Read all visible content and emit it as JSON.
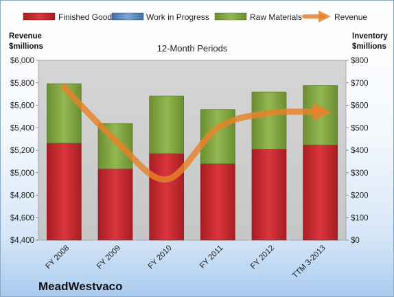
{
  "chart_data": {
    "type": "bar",
    "title": "12-Month Periods",
    "company": "MeadWestvaco",
    "left_axis_title": [
      "Revenue",
      "$millions"
    ],
    "right_axis_title": [
      "Inventory",
      "$millions"
    ],
    "categories": [
      "FY 2008",
      "FY 2009",
      "FY 2010",
      "FY 2011",
      "FY 2012",
      "TTM 3-2013"
    ],
    "left_axis": {
      "min": 4400,
      "max": 6000,
      "step": 200,
      "tick_labels": [
        "$4,400",
        "$4,600",
        "$4,800",
        "$5,000",
        "$5,200",
        "$5,400",
        "$5,600",
        "$5,800",
        "$6,000"
      ]
    },
    "right_axis": {
      "min": 0,
      "max": 800,
      "step": 100,
      "tick_labels": [
        "$0",
        "$100",
        "$200",
        "$300",
        "$400",
        "$500",
        "$600",
        "$700",
        "$800"
      ]
    },
    "series": [
      {
        "name": "Finished Goods",
        "axis": "right",
        "color": "#c0272d",
        "values": [
          432,
          317,
          385,
          340,
          405,
          423
        ]
      },
      {
        "name": "Work in Progress",
        "axis": "right",
        "color": "#4f81bd",
        "values": [
          0,
          0,
          0,
          0,
          0,
          0
        ]
      },
      {
        "name": "Raw Materials",
        "axis": "right",
        "color": "#7fa63e",
        "values": [
          264,
          202,
          256,
          241,
          254,
          265
        ]
      },
      {
        "name": "Revenue",
        "axis": "left",
        "type": "line",
        "color": "#e8822a",
        "values": [
          5760,
          5290,
          4940,
          5400,
          5530,
          5540
        ]
      }
    ],
    "legend_position": "top",
    "grid": false
  }
}
